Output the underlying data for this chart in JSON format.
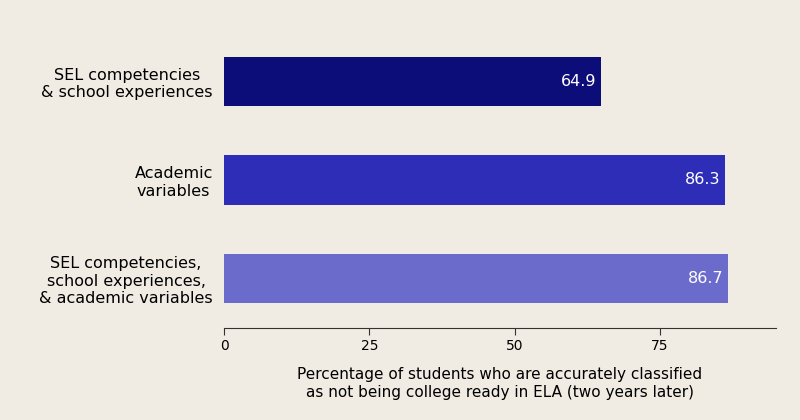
{
  "categories": [
    "SEL competencies,\nschool experiences,\n& academic variables",
    "Academic\nvariables",
    "SEL competencies\n& school experiences"
  ],
  "values": [
    86.7,
    86.3,
    64.9
  ],
  "bar_colors": [
    "#6b6bcc",
    "#2d2db8",
    "#0d0d7a"
  ],
  "value_labels": [
    "86.7",
    "86.3",
    "64.9"
  ],
  "xlabel": "Percentage of students who are accurately classified\nas not being college ready in ELA (two years later)",
  "xlim": [
    0,
    95
  ],
  "xticks": [
    0,
    25,
    50,
    75
  ],
  "background_color": "#f0ece3",
  "bar_height": 0.5,
  "label_fontsize": 11.5,
  "value_fontsize": 11.5,
  "xlabel_fontsize": 11
}
